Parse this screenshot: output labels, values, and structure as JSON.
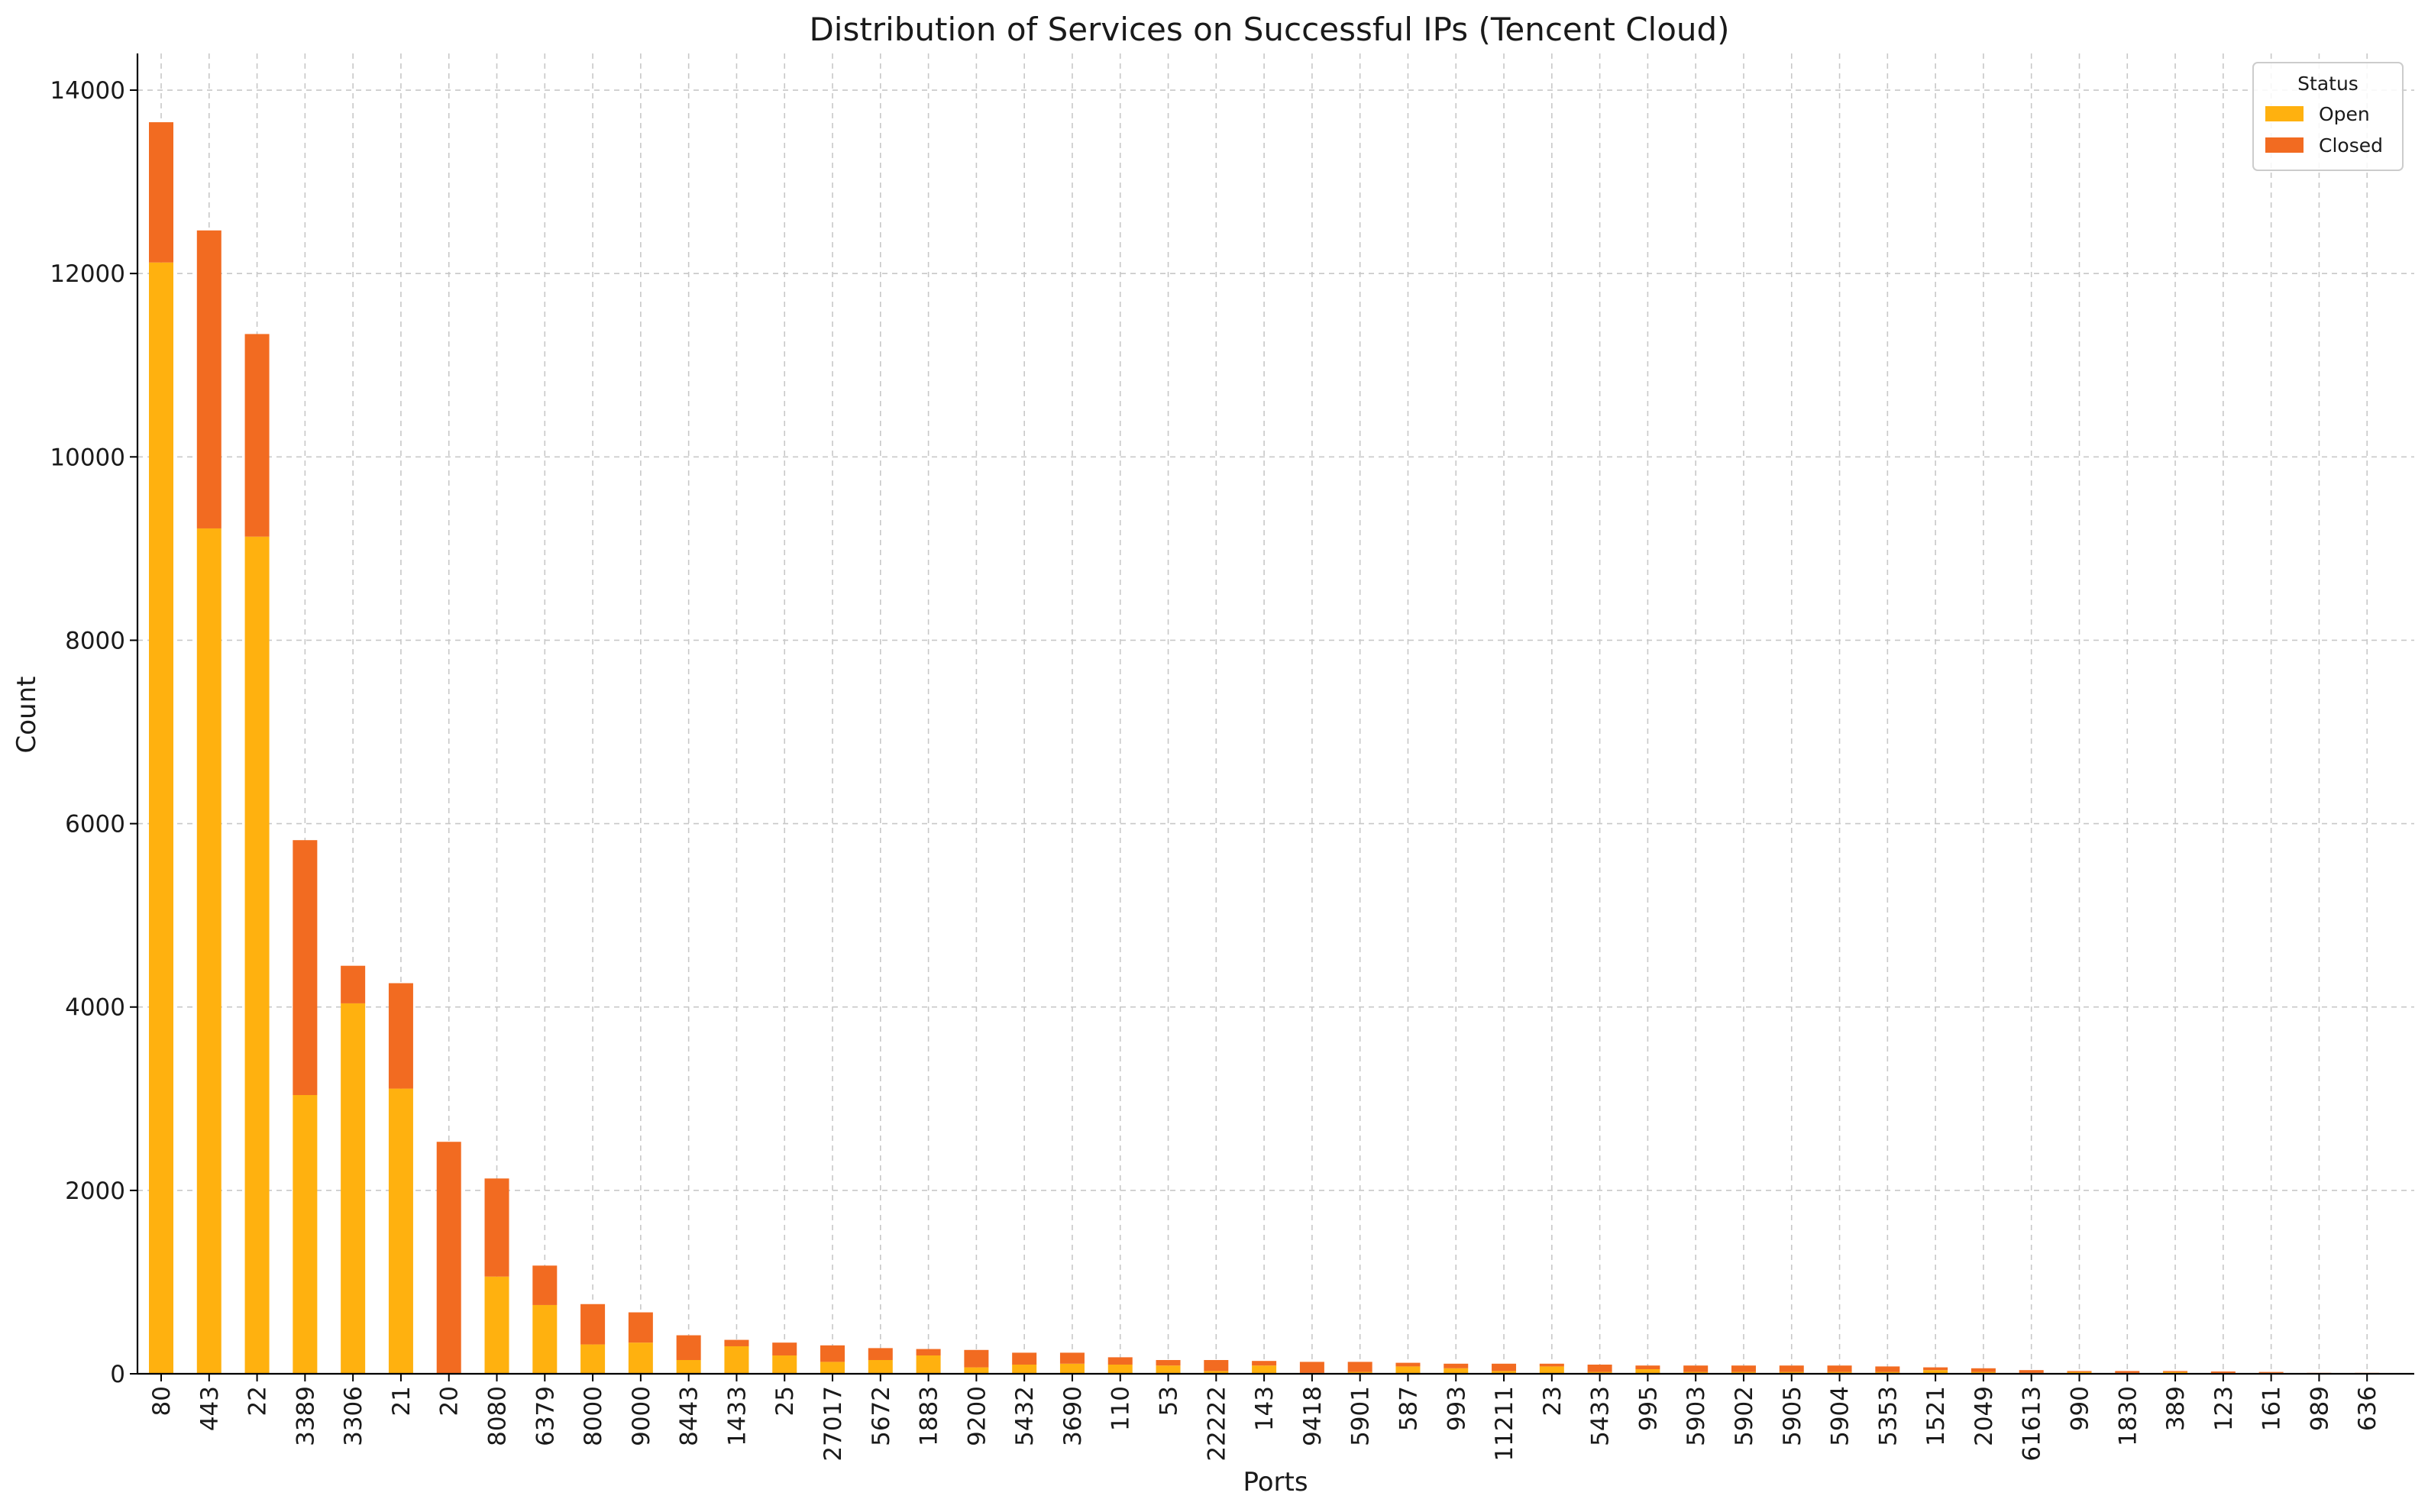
{
  "chart_data": {
    "type": "bar",
    "stacked": true,
    "title": "Distribution of Services on Successful IPs (Tencent Cloud)",
    "xlabel": "Ports",
    "ylabel": "Count",
    "ylim": [
      0,
      14400
    ],
    "yticks": [
      0,
      2000,
      4000,
      6000,
      8000,
      10000,
      12000,
      14000
    ],
    "grid": true,
    "legend": {
      "title": "Status",
      "placement": "top-right"
    },
    "categories": [
      "80",
      "443",
      "22",
      "3389",
      "3306",
      "21",
      "20",
      "8080",
      "6379",
      "8000",
      "9000",
      "8443",
      "1433",
      "25",
      "27017",
      "5672",
      "1883",
      "9200",
      "5432",
      "3690",
      "110",
      "53",
      "22222",
      "143",
      "9418",
      "5901",
      "587",
      "993",
      "11211",
      "23",
      "5433",
      "995",
      "5903",
      "5902",
      "5905",
      "5904",
      "5353",
      "1521",
      "2049",
      "61613",
      "990",
      "1830",
      "389",
      "123",
      "161",
      "989",
      "636"
    ],
    "series": [
      {
        "name": "Open",
        "color": "#FFB10F",
        "values": [
          12120,
          9220,
          9130,
          3040,
          4040,
          3110,
          0,
          1060,
          750,
          320,
          340,
          150,
          300,
          200,
          130,
          150,
          200,
          70,
          100,
          110,
          100,
          90,
          30,
          90,
          10,
          20,
          80,
          60,
          30,
          80,
          20,
          50,
          20,
          20,
          20,
          20,
          20,
          40,
          20,
          10,
          20,
          10,
          20,
          10,
          10,
          5,
          5
        ]
      },
      {
        "name": "Closed",
        "color": "#F26B21",
        "values": [
          1530,
          3250,
          2210,
          2780,
          410,
          1150,
          2530,
          1070,
          430,
          440,
          330,
          270,
          70,
          140,
          180,
          130,
          70,
          190,
          130,
          120,
          80,
          60,
          120,
          50,
          120,
          110,
          40,
          50,
          80,
          30,
          80,
          40,
          70,
          70,
          70,
          70,
          60,
          30,
          40,
          30,
          10,
          20,
          10,
          15,
          10,
          5,
          5
        ]
      }
    ]
  }
}
